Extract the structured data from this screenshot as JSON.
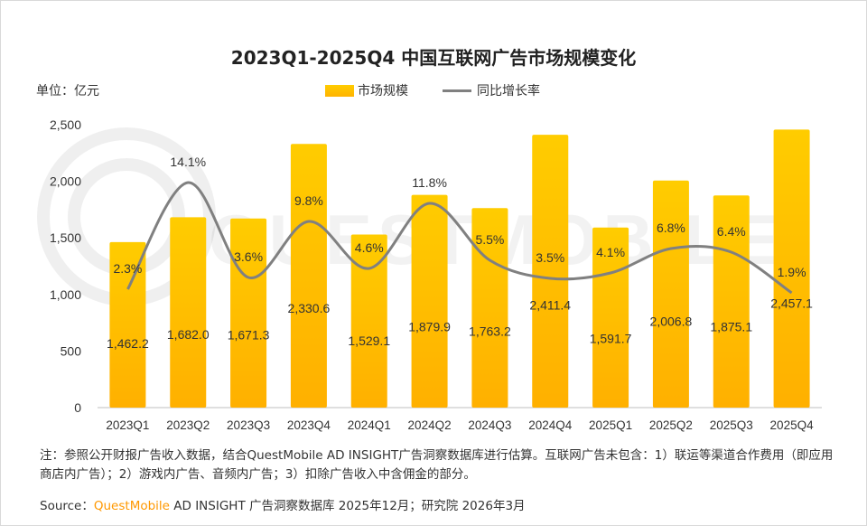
{
  "title": "2023Q1-2025Q4 中国互联网广告市场规模变化",
  "unit_label": "单位：亿元",
  "legend": {
    "bar_label": "市场规模",
    "line_label": "同比增长率"
  },
  "note": "注：参照公开财报广告收入数据，结合QuestMobile AD INSIGHT广告洞察数据库进行估算。互联网广告未包含：1）联运等渠道合作费用（即应用商店内广告）；2）游戏内广告、音频内广告；3）扣除广告收入中含佣金的部分。",
  "source": {
    "prefix": "Source：",
    "brand": "QuestMobile",
    "rest": " AD INSIGHT 广告洞察数据库 2025年12月；研究院 2026年3月"
  },
  "watermark_text": "QUESTMOBILE",
  "colors": {
    "bar_top": "#ffcc00",
    "bar_bottom": "#ffb000",
    "line": "#808080"
  },
  "chart_data": {
    "type": "bar",
    "categories": [
      "2023Q1",
      "2023Q2",
      "2023Q3",
      "2023Q4",
      "2024Q1",
      "2024Q2",
      "2024Q3",
      "2024Q4",
      "2025Q1",
      "2025Q2",
      "2025Q3",
      "2025Q4"
    ],
    "series": [
      {
        "name": "市场规模",
        "type": "bar",
        "values": [
          1462.2,
          1682.0,
          1671.3,
          2330.6,
          1529.1,
          1879.9,
          1763.2,
          2411.4,
          1591.7,
          2006.8,
          1875.1,
          2457.1
        ],
        "labels": [
          "1,462.2",
          "1,682.0",
          "1,671.3",
          "2,330.6",
          "1,529.1",
          "1,879.9",
          "1,763.2",
          "2,411.4",
          "1,591.7",
          "2,006.8",
          "1,875.1",
          "2,457.1"
        ]
      },
      {
        "name": "同比增长率",
        "type": "line",
        "unit": "%",
        "values": [
          2.3,
          14.1,
          3.6,
          9.8,
          4.6,
          11.8,
          5.5,
          3.5,
          4.1,
          6.8,
          6.4,
          1.9
        ],
        "labels": [
          "2.3%",
          "14.1%",
          "3.6%",
          "9.8%",
          "4.6%",
          "11.8%",
          "5.5%",
          "3.5%",
          "4.1%",
          "6.8%",
          "6.4%",
          "1.9%"
        ]
      }
    ],
    "yticks": [
      "0",
      "500",
      "1,000",
      "1,500",
      "2,000",
      "2,500"
    ],
    "ylim": [
      0,
      2500
    ],
    "ylabel": "单位：亿元",
    "legend_position": "top-center"
  }
}
